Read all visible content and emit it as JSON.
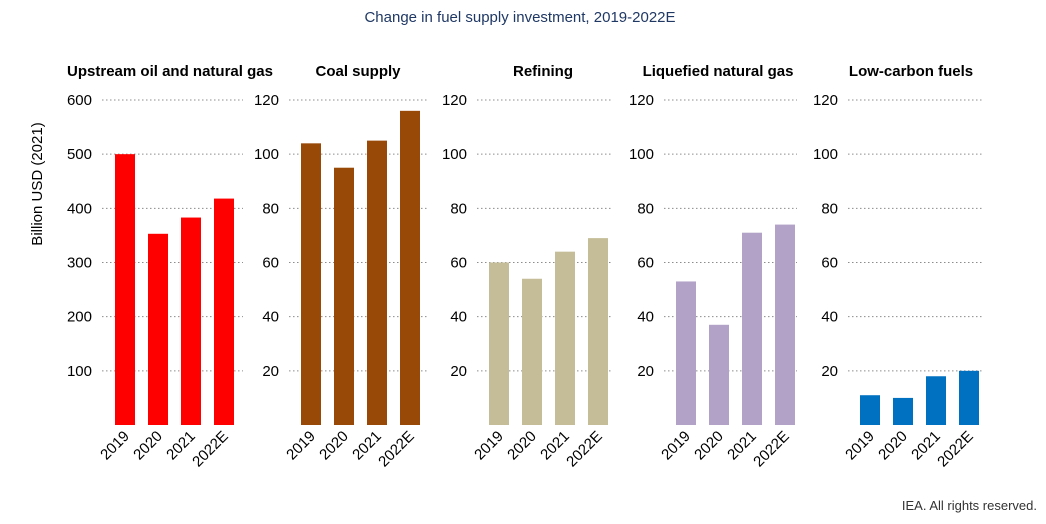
{
  "chart_data": {
    "type": "bar",
    "title": "Change in fuel supply investment, 2019-2022E",
    "ylabel": "Billion USD (2021)",
    "credit": "IEA. All rights reserved.",
    "grid": "horizontal-dotted",
    "categories": [
      "2019",
      "2020",
      "2021",
      "2022E"
    ],
    "panels": [
      {
        "name": "Upstream oil and natural gas",
        "color": "#ff0000",
        "ylim": [
          0,
          600
        ],
        "ticks": [
          100,
          200,
          300,
          400,
          500,
          600
        ],
        "values": [
          500,
          353,
          383,
          418
        ]
      },
      {
        "name": "Coal supply",
        "color": "#984807",
        "ylim": [
          0,
          120
        ],
        "ticks": [
          20,
          40,
          60,
          80,
          100,
          120
        ],
        "values": [
          104,
          95,
          105,
          116
        ]
      },
      {
        "name": "Refining",
        "color": "#c4bd97",
        "ylim": [
          0,
          120
        ],
        "ticks": [
          20,
          40,
          60,
          80,
          100,
          120
        ],
        "values": [
          60,
          54,
          64,
          69
        ]
      },
      {
        "name": "Liquefied natural gas",
        "color": "#b3a2c7",
        "ylim": [
          0,
          120
        ],
        "ticks": [
          20,
          40,
          60,
          80,
          100,
          120
        ],
        "values": [
          53,
          37,
          71,
          74
        ]
      },
      {
        "name": "Low-carbon fuels",
        "color": "#0070c0",
        "ylim": [
          0,
          120
        ],
        "ticks": [
          20,
          40,
          60,
          80,
          100,
          120
        ],
        "values": [
          11,
          10,
          18,
          20
        ]
      }
    ]
  }
}
